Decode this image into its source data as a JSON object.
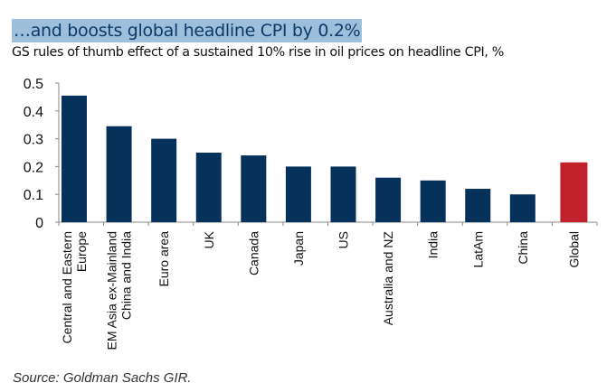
{
  "chart_data": {
    "type": "bar",
    "title": "…and boosts global headline CPI by 0.2%",
    "subtitle": "GS rules of thumb effect of a sustained 10% rise in oil prices on headline CPI, %",
    "source": "Source: Goldman Sachs GIR.",
    "categories": [
      [
        "Central and Eastern",
        "Europe"
      ],
      [
        "EM Asia ex-Mainland",
        "China and India"
      ],
      [
        "Euro area"
      ],
      [
        "UK"
      ],
      [
        "Canada"
      ],
      [
        "Japan"
      ],
      [
        "US"
      ],
      [
        "Australia and NZ"
      ],
      [
        "India"
      ],
      [
        "LatAm"
      ],
      [
        "China"
      ],
      [
        "Global"
      ]
    ],
    "values": [
      0.455,
      0.345,
      0.3,
      0.25,
      0.24,
      0.2,
      0.2,
      0.16,
      0.15,
      0.12,
      0.1,
      0.215
    ],
    "ylim": [
      0,
      0.5
    ],
    "yticks": [
      "0",
      "0.1",
      "0.2",
      "0.3",
      "0.4",
      "0.5"
    ],
    "grid": false,
    "colors": {
      "bar": "#05315a",
      "highlight": "#c0212b",
      "title_bg": "#9dbfdc",
      "title_text": "#0d3a66"
    },
    "highlight_category": "Global"
  }
}
